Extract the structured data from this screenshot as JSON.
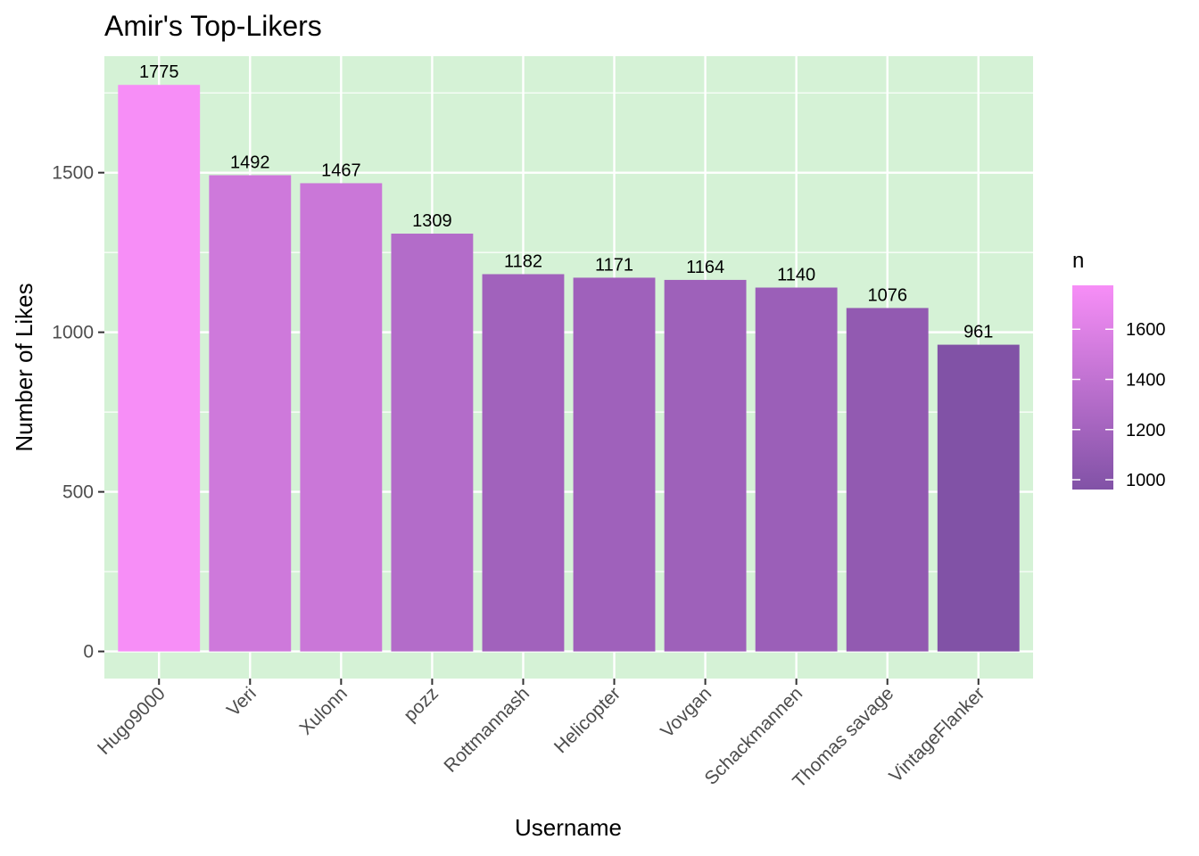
{
  "chart_data": {
    "type": "bar",
    "title": "Amir's Top-Likers",
    "xlabel": "Username",
    "ylabel": "Number of Likes",
    "categories": [
      "Hugo9000",
      "Veri",
      "Xulonn",
      "pozz",
      "Rottmannash",
      "Helicopter",
      "Vovgan",
      "Schackmannen",
      "Thomas savage",
      "VintageFlanker"
    ],
    "values": [
      1775,
      1492,
      1467,
      1309,
      1182,
      1171,
      1164,
      1140,
      1076,
      961
    ],
    "ylim": [
      -85,
      1865
    ],
    "yticks": [
      0,
      500,
      1000,
      1500
    ],
    "grid": true,
    "panel_background": "#D5F2D6",
    "legend": {
      "title": "n",
      "position": "right",
      "ticks": [
        1000,
        1200,
        1400,
        1600
      ],
      "gradient_low_color": "#8152A6",
      "gradient_high_color": "#F78EF7",
      "range": [
        961,
        1775
      ]
    }
  }
}
